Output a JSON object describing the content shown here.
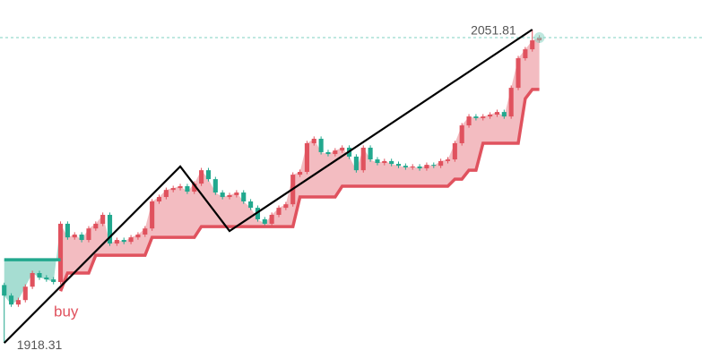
{
  "chart_data": {
    "type": "candlestick",
    "up_color": "#e0525e",
    "down_color": "#22a88e",
    "xlim": [
      -0.6,
      99.1
    ],
    "ylim": [
      1911.5,
      2064.4
    ],
    "x": [
      0,
      1,
      2,
      3,
      4,
      5,
      6,
      7,
      8,
      9,
      10,
      11,
      12,
      13,
      14,
      15,
      16,
      17,
      18,
      19,
      20,
      21,
      22,
      23,
      24,
      25,
      26,
      27,
      28,
      29,
      30,
      31,
      32,
      33,
      34,
      35,
      36,
      37,
      38,
      39,
      40,
      41,
      42,
      43,
      44,
      45,
      46,
      47,
      48,
      49,
      50,
      51,
      52,
      53,
      54,
      55,
      56,
      57,
      58,
      59,
      60,
      61,
      62,
      63,
      64,
      65,
      66,
      67,
      68,
      69,
      70,
      71,
      72,
      73,
      74,
      75,
      76
    ],
    "open": [
      1943.0,
      1938.5,
      1934.7,
      1936.6,
      1942.3,
      1948.1,
      1946.2,
      1945.4,
      1944.3,
      1969.1,
      1963.3,
      1964.5,
      1962.2,
      1967.1,
      1969.1,
      1972.9,
      1960.7,
      1962.2,
      1961.4,
      1963.3,
      1964.5,
      1967.1,
      1978.6,
      1980.5,
      1983.5,
      1984.3,
      1985.1,
      1982.8,
      1986.2,
      1991.9,
      1988.1,
      1982.4,
      1980.5,
      1981.3,
      1982.4,
      1978.6,
      1975.9,
      1971.0,
      1969.1,
      1972.9,
      1975.9,
      1977.4,
      1990.0,
      1991.2,
      2003.4,
      2005.3,
      1999.6,
      1998.8,
      2000.3,
      2001.5,
      1997.7,
      1991.9,
      2001.5,
      1996.5,
      1995.0,
      1995.8,
      1994.6,
      1993.8,
      1993.1,
      1993.5,
      1992.7,
      1994.2,
      1993.8,
      1995.8,
      1996.5,
      2003.4,
      2011.0,
      2014.8,
      2014.1,
      2014.8,
      2015.6,
      2016.7,
      2014.8,
      2027.0,
      2039.6,
      2043.4,
      2047.2
    ],
    "high": [
      1944.0,
      1939.5,
      1937.6,
      1943.3,
      1949.1,
      1949.1,
      1947.2,
      1946.4,
      1970.1,
      1970.1,
      1965.5,
      1965.5,
      1968.1,
      1970.1,
      1973.9,
      1973.9,
      1963.2,
      1963.2,
      1964.3,
      1965.5,
      1968.1,
      1979.6,
      1981.5,
      1984.5,
      1985.3,
      1986.1,
      1986.1,
      1987.2,
      1992.9,
      1992.9,
      1989.1,
      1983.4,
      1982.3,
      1983.4,
      1983.4,
      1979.6,
      1976.9,
      1972.0,
      1973.9,
      1976.9,
      1978.4,
      1991.0,
      1992.2,
      2004.4,
      2006.3,
      2006.3,
      2000.6,
      2001.3,
      2002.5,
      2002.5,
      1998.7,
      2002.5,
      2002.5,
      1997.5,
      1996.8,
      1996.8,
      1995.6,
      1994.8,
      1994.5,
      1994.5,
      1995.2,
      1995.2,
      1996.8,
      1997.5,
      2004.4,
      2012.0,
      2015.8,
      2015.8,
      2015.8,
      2016.6,
      2017.7,
      2017.7,
      2028.0,
      2040.6,
      2044.4,
      2051.81,
      2049.4
    ],
    "low": [
      1918.31,
      1933.7,
      1933.7,
      1935.6,
      1941.3,
      1945.2,
      1944.4,
      1943.3,
      1943.3,
      1962.3,
      1962.3,
      1961.2,
      1961.2,
      1966.1,
      1968.1,
      1959.7,
      1959.7,
      1960.4,
      1960.4,
      1962.3,
      1963.5,
      1966.1,
      1977.6,
      1979.5,
      1982.5,
      1983.3,
      1981.8,
      1981.8,
      1985.2,
      1987.1,
      1981.4,
      1979.5,
      1979.5,
      1980.3,
      1977.6,
      1974.9,
      1970.0,
      1968.1,
      1968.1,
      1971.9,
      1974.9,
      1976.4,
      1989.0,
      1990.2,
      2002.4,
      1998.6,
      1997.8,
      1997.8,
      1999.3,
      1996.7,
      1990.9,
      1990.9,
      1995.5,
      1994.0,
      1994.0,
      1993.6,
      1992.8,
      1992.1,
      1992.1,
      1991.7,
      1991.7,
      1992.8,
      1992.8,
      1994.8,
      1995.5,
      2002.4,
      2010.0,
      2013.1,
      2013.1,
      2013.8,
      2014.6,
      2013.8,
      2013.8,
      2026.0,
      2038.6,
      2042.4,
      2046.2
    ],
    "close": [
      1938.5,
      1934.7,
      1936.6,
      1942.3,
      1948.1,
      1946.2,
      1945.4,
      1944.3,
      1969.1,
      1963.3,
      1964.5,
      1962.2,
      1967.1,
      1969.1,
      1972.9,
      1960.7,
      1962.2,
      1961.4,
      1963.3,
      1964.5,
      1967.1,
      1978.6,
      1980.5,
      1983.5,
      1984.3,
      1985.1,
      1982.8,
      1986.2,
      1991.9,
      1988.1,
      1982.4,
      1980.5,
      1981.3,
      1982.4,
      1978.6,
      1975.9,
      1971.0,
      1969.1,
      1972.9,
      1975.9,
      1977.4,
      1990.0,
      1991.2,
      2003.4,
      2005.3,
      1999.6,
      1998.8,
      2000.3,
      2001.5,
      1997.7,
      1991.9,
      2001.5,
      1996.5,
      1995.0,
      1995.8,
      1994.6,
      1993.8,
      1993.1,
      1993.5,
      1992.7,
      1994.2,
      1993.8,
      1995.8,
      1996.5,
      2003.4,
      2011.0,
      2014.8,
      2014.1,
      2014.8,
      2015.6,
      2016.7,
      2014.8,
      2027.0,
      2039.6,
      2043.4,
      2047.2,
      2048.4
    ],
    "trend": [
      {
        "color": "#22a88e",
        "fill": "#a6ddd2",
        "values": [
          1953.8,
          1953.8,
          1953.8,
          1953.8,
          1953.8,
          1953.8,
          1953.8,
          1953.8,
          1953.8,
          null,
          null,
          null,
          null,
          null,
          null,
          null,
          null,
          null,
          null,
          null,
          null,
          null,
          null,
          null,
          null,
          null,
          null,
          null,
          null,
          null,
          null,
          null,
          null,
          null,
          null,
          null,
          null,
          null,
          null,
          null,
          null,
          null,
          null,
          null,
          null,
          null,
          null,
          null,
          null,
          null,
          null,
          null,
          null,
          null,
          null,
          null,
          null,
          null,
          null,
          null,
          null,
          null,
          null,
          null,
          null,
          null,
          null,
          null,
          null,
          null,
          null,
          null,
          null,
          null,
          null,
          null,
          null
        ]
      },
      {
        "color": "#e0525e",
        "fill": "#f3bcc1",
        "values": [
          null,
          null,
          null,
          null,
          null,
          null,
          null,
          null,
          1940.4,
          1948.1,
          1948.1,
          1948.1,
          1948.1,
          1955.7,
          1955.7,
          1955.7,
          1955.7,
          1955.7,
          1955.7,
          1955.7,
          1955.7,
          1963.3,
          1963.3,
          1963.3,
          1963.3,
          1963.3,
          1963.3,
          1963.3,
          1967.9,
          1967.9,
          1967.9,
          1967.9,
          1967.9,
          1967.9,
          1967.9,
          1967.9,
          1967.9,
          1967.9,
          1967.9,
          1967.9,
          1967.9,
          1967.9,
          1980.5,
          1980.5,
          1980.5,
          1980.5,
          1980.5,
          1980.5,
          1985.1,
          1985.1,
          1985.1,
          1985.1,
          1985.1,
          1985.1,
          1985.1,
          1985.1,
          1985.1,
          1985.1,
          1985.1,
          1985.1,
          1985.1,
          1985.1,
          1985.1,
          1985.1,
          1988.1,
          1988.1,
          1991.9,
          1991.9,
          2003.4,
          2003.4,
          2003.4,
          2003.4,
          2003.4,
          2003.4,
          2022.4,
          2026.3,
          2026.3
        ]
      }
    ],
    "zigzag": {
      "color": "#000000",
      "x": [
        0,
        25,
        32,
        75
      ],
      "values": [
        1918.31,
        1993.5,
        1966.0,
        2051.81
      ]
    },
    "last_price_color": "#7fd1c0",
    "signal": "buy"
  }
}
